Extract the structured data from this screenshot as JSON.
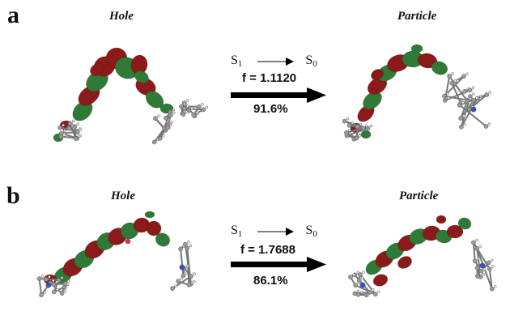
{
  "panels": [
    {
      "label": "a",
      "hole_title": "Hole",
      "particle_title": "Particle",
      "transition": {
        "from": "S",
        "from_sub": "1",
        "to": "S",
        "to_sub": "0"
      },
      "oscillator_strength": "f = 1.1120",
      "contribution": "91.6%"
    },
    {
      "label": "b",
      "hole_title": "Hole",
      "particle_title": "Particle",
      "transition": {
        "from": "S",
        "from_sub": "1",
        "to": "S",
        "to_sub": "0"
      },
      "oscillator_strength": "f = 1.7688",
      "contribution": "86.1%"
    }
  ],
  "colors": {
    "lobe_positive": "#8b1a1a",
    "lobe_negative": "#2f7a36",
    "carbon_atom": "#9a9a9a",
    "hydrogen_atom": "#eeeeee",
    "nitrogen_atom": "#3a4fc4",
    "oxygen_atom": "#e03030",
    "arrow": "#000000"
  }
}
